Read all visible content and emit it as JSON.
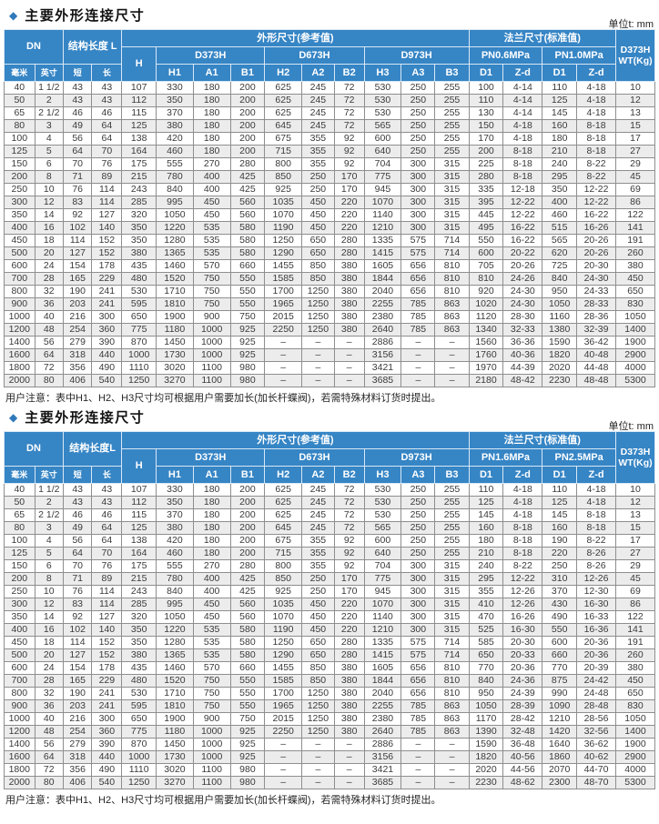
{
  "page": {
    "unit_label": "单位t: mm",
    "note": "用户注意：表中H1、H2、H3尺寸均可根据用户需要加长(加长杆蝶阀)，若需特殊材料订货时提出。"
  },
  "colors": {
    "header_blue": "#3685c5",
    "stripe_gray": "#ececec",
    "accent_diamond": "#2e79ba"
  },
  "tables": [
    {
      "title": "主要外形连接尺寸",
      "header": {
        "dn": "DN",
        "dn_sub": [
          "毫米",
          "英寸"
        ],
        "length": "结构长度 L",
        "length_sub": [
          "短",
          "长"
        ],
        "h": "H",
        "outline_group": "外形尺寸(参考值)",
        "models": [
          "D373H",
          "D673H",
          "D973H"
        ],
        "model_sub": [
          "H1",
          "A1",
          "B1",
          "H2",
          "A2",
          "B2",
          "H3",
          "A3",
          "B3"
        ],
        "flange_group": "法兰尺寸(标准值)",
        "pn_groups": [
          "PN0.6MPa",
          "PN1.0MPa"
        ],
        "pn_sub": [
          "D1",
          "Z-d",
          "D1",
          "Z-d"
        ],
        "wt": "D373H\nWT(Kg)"
      },
      "rows": [
        [
          "40",
          "1 1/2",
          "43",
          "43",
          "107",
          "330",
          "180",
          "200",
          "625",
          "245",
          "72",
          "530",
          "250",
          "255",
          "100",
          "4-14",
          "110",
          "4-18",
          "10"
        ],
        [
          "50",
          "2",
          "43",
          "43",
          "112",
          "350",
          "180",
          "200",
          "625",
          "245",
          "72",
          "530",
          "250",
          "255",
          "110",
          "4-14",
          "125",
          "4-18",
          "12"
        ],
        [
          "65",
          "2 1/2",
          "46",
          "46",
          "115",
          "370",
          "180",
          "200",
          "625",
          "245",
          "72",
          "530",
          "250",
          "255",
          "130",
          "4-14",
          "145",
          "4-18",
          "13"
        ],
        [
          "80",
          "3",
          "49",
          "64",
          "125",
          "380",
          "180",
          "200",
          "645",
          "245",
          "72",
          "565",
          "250",
          "255",
          "150",
          "4-18",
          "160",
          "8-18",
          "15"
        ],
        [
          "100",
          "4",
          "56",
          "64",
          "138",
          "420",
          "180",
          "200",
          "675",
          "355",
          "92",
          "600",
          "250",
          "255",
          "170",
          "4-18",
          "180",
          "8-18",
          "17"
        ],
        [
          "125",
          "5",
          "64",
          "70",
          "164",
          "460",
          "180",
          "200",
          "715",
          "355",
          "92",
          "640",
          "250",
          "255",
          "200",
          "8-18",
          "210",
          "8-18",
          "27"
        ],
        [
          "150",
          "6",
          "70",
          "76",
          "175",
          "555",
          "270",
          "280",
          "800",
          "355",
          "92",
          "704",
          "300",
          "315",
          "225",
          "8-18",
          "240",
          "8-22",
          "29"
        ],
        [
          "200",
          "8",
          "71",
          "89",
          "215",
          "780",
          "400",
          "425",
          "850",
          "250",
          "170",
          "775",
          "300",
          "315",
          "280",
          "8-18",
          "295",
          "8-22",
          "45"
        ],
        [
          "250",
          "10",
          "76",
          "114",
          "243",
          "840",
          "400",
          "425",
          "925",
          "250",
          "170",
          "945",
          "300",
          "315",
          "335",
          "12-18",
          "350",
          "12-22",
          "69"
        ],
        [
          "300",
          "12",
          "83",
          "114",
          "285",
          "995",
          "450",
          "560",
          "1035",
          "450",
          "220",
          "1070",
          "300",
          "315",
          "395",
          "12-22",
          "400",
          "12-22",
          "86"
        ],
        [
          "350",
          "14",
          "92",
          "127",
          "320",
          "1050",
          "450",
          "560",
          "1070",
          "450",
          "220",
          "1140",
          "300",
          "315",
          "445",
          "12-22",
          "460",
          "16-22",
          "122"
        ],
        [
          "400",
          "16",
          "102",
          "140",
          "350",
          "1220",
          "535",
          "580",
          "1190",
          "450",
          "220",
          "1210",
          "300",
          "315",
          "495",
          "16-22",
          "515",
          "16-26",
          "141"
        ],
        [
          "450",
          "18",
          "114",
          "152",
          "350",
          "1280",
          "535",
          "580",
          "1250",
          "650",
          "280",
          "1335",
          "575",
          "714",
          "550",
          "16-22",
          "565",
          "20-26",
          "191"
        ],
        [
          "500",
          "20",
          "127",
          "152",
          "380",
          "1365",
          "535",
          "580",
          "1290",
          "650",
          "280",
          "1415",
          "575",
          "714",
          "600",
          "20-22",
          "620",
          "20-26",
          "260"
        ],
        [
          "600",
          "24",
          "154",
          "178",
          "435",
          "1460",
          "570",
          "660",
          "1455",
          "850",
          "380",
          "1605",
          "656",
          "810",
          "705",
          "20-26",
          "725",
          "20-30",
          "380"
        ],
        [
          "700",
          "28",
          "165",
          "229",
          "480",
          "1520",
          "750",
          "550",
          "1585",
          "850",
          "380",
          "1844",
          "656",
          "810",
          "810",
          "24-26",
          "840",
          "24-30",
          "450"
        ],
        [
          "800",
          "32",
          "190",
          "241",
          "530",
          "1710",
          "750",
          "550",
          "1700",
          "1250",
          "380",
          "2040",
          "656",
          "810",
          "920",
          "24-30",
          "950",
          "24-33",
          "650"
        ],
        [
          "900",
          "36",
          "203",
          "241",
          "595",
          "1810",
          "750",
          "550",
          "1965",
          "1250",
          "380",
          "2255",
          "785",
          "863",
          "1020",
          "24-30",
          "1050",
          "28-33",
          "830"
        ],
        [
          "1000",
          "40",
          "216",
          "300",
          "650",
          "1900",
          "900",
          "750",
          "2015",
          "1250",
          "380",
          "2380",
          "785",
          "863",
          "1120",
          "28-30",
          "1160",
          "28-36",
          "1050"
        ],
        [
          "1200",
          "48",
          "254",
          "360",
          "775",
          "1180",
          "1000",
          "925",
          "2250",
          "1250",
          "380",
          "2640",
          "785",
          "863",
          "1340",
          "32-33",
          "1380",
          "32-39",
          "1400"
        ],
        [
          "1400",
          "56",
          "279",
          "390",
          "870",
          "1450",
          "1000",
          "925",
          "–",
          "–",
          "–",
          "2886",
          "–",
          "–",
          "1560",
          "36-36",
          "1590",
          "36-42",
          "1900"
        ],
        [
          "1600",
          "64",
          "318",
          "440",
          "1000",
          "1730",
          "1000",
          "925",
          "–",
          "–",
          "–",
          "3156",
          "–",
          "–",
          "1760",
          "40-36",
          "1820",
          "40-48",
          "2900"
        ],
        [
          "1800",
          "72",
          "356",
          "490",
          "1110",
          "3020",
          "1100",
          "980",
          "–",
          "–",
          "–",
          "3421",
          "–",
          "–",
          "1970",
          "44-39",
          "2020",
          "44-48",
          "4000"
        ],
        [
          "2000",
          "80",
          "406",
          "540",
          "1250",
          "3270",
          "1100",
          "980",
          "–",
          "–",
          "–",
          "3685",
          "–",
          "–",
          "2180",
          "48-42",
          "2230",
          "48-48",
          "5300"
        ]
      ]
    },
    {
      "title": "主要外形连接尺寸",
      "header": {
        "dn": "DN",
        "dn_sub": [
          "毫米",
          "英寸"
        ],
        "length": "结构长度L",
        "length_sub": [
          "短",
          "长"
        ],
        "h": "H",
        "outline_group": "外形尺寸(参考值)",
        "models": [
          "D373H",
          "D673H",
          "D973H"
        ],
        "model_sub": [
          "H1",
          "A1",
          "B1",
          "H2",
          "A2",
          "B2",
          "H3",
          "A3",
          "B3"
        ],
        "flange_group": "法兰尺寸(标准值)",
        "pn_groups": [
          "PN1.6MPa",
          "PN2.5MPa"
        ],
        "pn_sub": [
          "D1",
          "Z-d",
          "D1",
          "Z-d"
        ],
        "wt": "D373H\nWT(Kg)"
      },
      "rows": [
        [
          "40",
          "1 1/2",
          "43",
          "43",
          "107",
          "330",
          "180",
          "200",
          "625",
          "245",
          "72",
          "530",
          "250",
          "255",
          "110",
          "4-18",
          "110",
          "4-18",
          "10"
        ],
        [
          "50",
          "2",
          "43",
          "43",
          "112",
          "350",
          "180",
          "200",
          "625",
          "245",
          "72",
          "530",
          "250",
          "255",
          "125",
          "4-18",
          "125",
          "4-18",
          "12"
        ],
        [
          "65",
          "2 1/2",
          "46",
          "46",
          "115",
          "370",
          "180",
          "200",
          "625",
          "245",
          "72",
          "530",
          "250",
          "255",
          "145",
          "4-18",
          "145",
          "8-18",
          "13"
        ],
        [
          "80",
          "3",
          "49",
          "64",
          "125",
          "380",
          "180",
          "200",
          "645",
          "245",
          "72",
          "565",
          "250",
          "255",
          "160",
          "8-18",
          "160",
          "8-18",
          "15"
        ],
        [
          "100",
          "4",
          "56",
          "64",
          "138",
          "420",
          "180",
          "200",
          "675",
          "355",
          "92",
          "600",
          "250",
          "255",
          "180",
          "8-18",
          "190",
          "8-22",
          "17"
        ],
        [
          "125",
          "5",
          "64",
          "70",
          "164",
          "460",
          "180",
          "200",
          "715",
          "355",
          "92",
          "640",
          "250",
          "255",
          "210",
          "8-18",
          "220",
          "8-26",
          "27"
        ],
        [
          "150",
          "6",
          "70",
          "76",
          "175",
          "555",
          "270",
          "280",
          "800",
          "355",
          "92",
          "704",
          "300",
          "315",
          "240",
          "8-22",
          "250",
          "8-26",
          "29"
        ],
        [
          "200",
          "8",
          "71",
          "89",
          "215",
          "780",
          "400",
          "425",
          "850",
          "250",
          "170",
          "775",
          "300",
          "315",
          "295",
          "12-22",
          "310",
          "12-26",
          "45"
        ],
        [
          "250",
          "10",
          "76",
          "114",
          "243",
          "840",
          "400",
          "425",
          "925",
          "250",
          "170",
          "945",
          "300",
          "315",
          "355",
          "12-26",
          "370",
          "12-30",
          "69"
        ],
        [
          "300",
          "12",
          "83",
          "114",
          "285",
          "995",
          "450",
          "560",
          "1035",
          "450",
          "220",
          "1070",
          "300",
          "315",
          "410",
          "12-26",
          "430",
          "16-30",
          "86"
        ],
        [
          "350",
          "14",
          "92",
          "127",
          "320",
          "1050",
          "450",
          "560",
          "1070",
          "450",
          "220",
          "1140",
          "300",
          "315",
          "470",
          "16-26",
          "490",
          "16-33",
          "122"
        ],
        [
          "400",
          "16",
          "102",
          "140",
          "350",
          "1220",
          "535",
          "580",
          "1190",
          "450",
          "220",
          "1210",
          "300",
          "315",
          "525",
          "16-30",
          "550",
          "16-36",
          "141"
        ],
        [
          "450",
          "18",
          "114",
          "152",
          "350",
          "1280",
          "535",
          "580",
          "1250",
          "650",
          "280",
          "1335",
          "575",
          "714",
          "585",
          "20-30",
          "600",
          "20-36",
          "191"
        ],
        [
          "500",
          "20",
          "127",
          "152",
          "380",
          "1365",
          "535",
          "580",
          "1290",
          "650",
          "280",
          "1415",
          "575",
          "714",
          "650",
          "20-33",
          "660",
          "20-36",
          "260"
        ],
        [
          "600",
          "24",
          "154",
          "178",
          "435",
          "1460",
          "570",
          "660",
          "1455",
          "850",
          "380",
          "1605",
          "656",
          "810",
          "770",
          "20-36",
          "770",
          "20-39",
          "380"
        ],
        [
          "700",
          "28",
          "165",
          "229",
          "480",
          "1520",
          "750",
          "550",
          "1585",
          "850",
          "380",
          "1844",
          "656",
          "810",
          "840",
          "24-36",
          "875",
          "24-42",
          "450"
        ],
        [
          "800",
          "32",
          "190",
          "241",
          "530",
          "1710",
          "750",
          "550",
          "1700",
          "1250",
          "380",
          "2040",
          "656",
          "810",
          "950",
          "24-39",
          "990",
          "24-48",
          "650"
        ],
        [
          "900",
          "36",
          "203",
          "241",
          "595",
          "1810",
          "750",
          "550",
          "1965",
          "1250",
          "380",
          "2255",
          "785",
          "863",
          "1050",
          "28-39",
          "1090",
          "28-48",
          "830"
        ],
        [
          "1000",
          "40",
          "216",
          "300",
          "650",
          "1900",
          "900",
          "750",
          "2015",
          "1250",
          "380",
          "2380",
          "785",
          "863",
          "1170",
          "28-42",
          "1210",
          "28-56",
          "1050"
        ],
        [
          "1200",
          "48",
          "254",
          "360",
          "775",
          "1180",
          "1000",
          "925",
          "2250",
          "1250",
          "380",
          "2640",
          "785",
          "863",
          "1390",
          "32-48",
          "1420",
          "32-56",
          "1400"
        ],
        [
          "1400",
          "56",
          "279",
          "390",
          "870",
          "1450",
          "1000",
          "925",
          "–",
          "–",
          "–",
          "2886",
          "–",
          "–",
          "1590",
          "36-48",
          "1640",
          "36-62",
          "1900"
        ],
        [
          "1600",
          "64",
          "318",
          "440",
          "1000",
          "1730",
          "1000",
          "925",
          "–",
          "–",
          "–",
          "3156",
          "–",
          "–",
          "1820",
          "40-56",
          "1860",
          "40-62",
          "2900"
        ],
        [
          "1800",
          "72",
          "356",
          "490",
          "1110",
          "3020",
          "1100",
          "980",
          "–",
          "–",
          "–",
          "3421",
          "–",
          "–",
          "2020",
          "44-56",
          "2070",
          "44-70",
          "4000"
        ],
        [
          "2000",
          "80",
          "406",
          "540",
          "1250",
          "3270",
          "1100",
          "980",
          "–",
          "–",
          "–",
          "3685",
          "–",
          "–",
          "2230",
          "48-62",
          "2300",
          "48-70",
          "5300"
        ]
      ]
    }
  ]
}
